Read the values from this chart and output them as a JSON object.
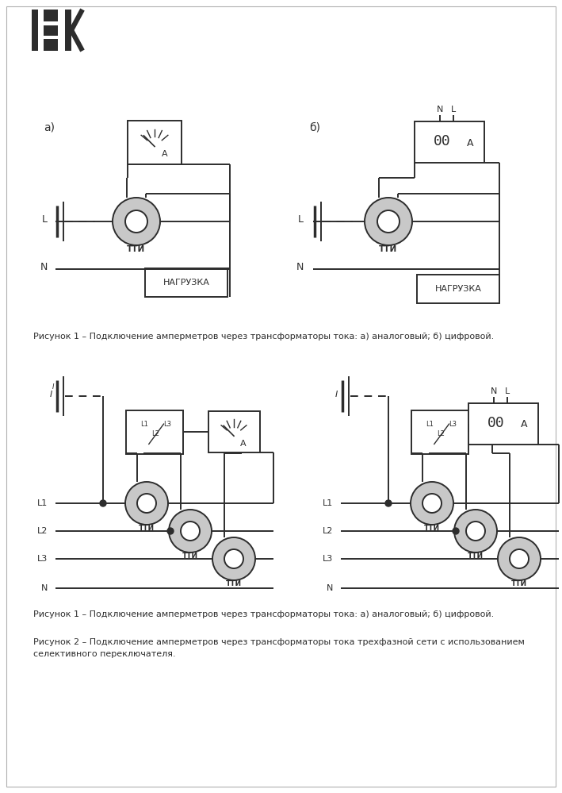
{
  "bg_color": "#ffffff",
  "line_color": "#2d2d2d",
  "torus_color": "#c8c8c8",
  "fig1_caption": "Рисунок 1 – Подключение амперметров через трансформаторы тока: а) аналоговый; б) цифровой.",
  "fig2_caption1": "Рисунок 2 – Подключение амперметров через трансформаторы тока трехфазной сети с использованием",
  "fig2_caption2": "селективного переключателя.",
  "label_a": "а)",
  "label_b": "б)"
}
